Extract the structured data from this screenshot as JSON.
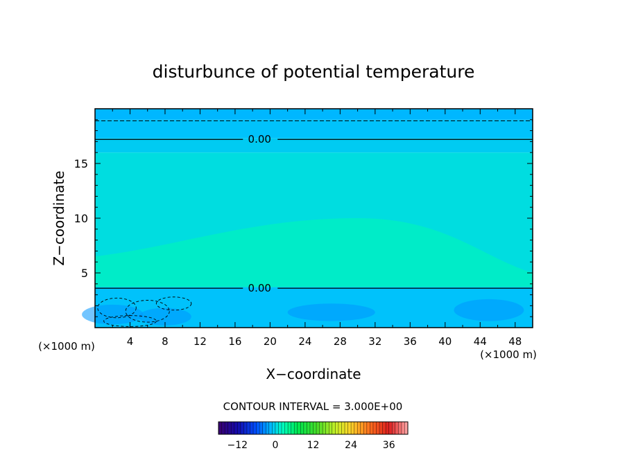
{
  "chart_data": {
    "type": "heatmap",
    "title": "disturbunce of potential temperature",
    "xlabel": "X−coordinate",
    "ylabel": "Z−coordinate",
    "x_unit_left": "(×1000 m)",
    "x_unit_right": "(×1000 m)",
    "xlim": [
      0,
      50
    ],
    "ylim": [
      0,
      20
    ],
    "x_ticks": [
      4,
      8,
      12,
      16,
      20,
      24,
      28,
      32,
      36,
      40,
      44,
      48
    ],
    "y_ticks": [
      5,
      10,
      15
    ],
    "grid": false,
    "field_bands": [
      {
        "z_from": 19.0,
        "z_to": 20.0,
        "value": -1.5
      },
      {
        "z_from": 17.3,
        "z_to": 19.0,
        "value": -1.0
      },
      {
        "z_from": 16.0,
        "z_to": 17.3,
        "value": -0.5
      },
      {
        "z_from": 3.7,
        "z_to": 16.0,
        "value": 0.5
      },
      {
        "z_from": 0.0,
        "z_to": 3.7,
        "value": -1.0
      }
    ],
    "contours": [
      {
        "level": 0.0,
        "label": "0.00",
        "z": 17.2,
        "style": "solid"
      },
      {
        "level": 0.0,
        "label": "0.00",
        "z": 3.6,
        "style": "solid"
      },
      {
        "level": -3.0,
        "z": 18.9,
        "style": "dashed"
      }
    ],
    "contour_interval_label": "CONTOUR INTERVAL = 3.000E+00",
    "colorbar": {
      "min": -18,
      "max": 42,
      "ticks": [
        -12,
        0,
        12,
        24,
        36
      ],
      "tick_labels": [
        "−12",
        "0",
        "12",
        "24",
        "36"
      ]
    }
  }
}
